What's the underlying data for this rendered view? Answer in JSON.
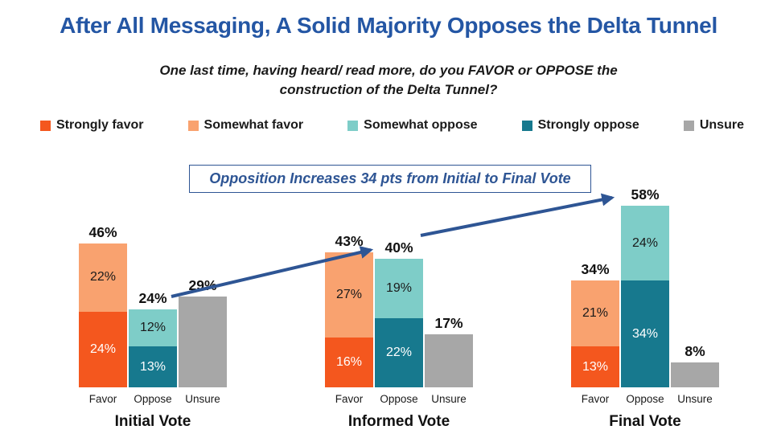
{
  "title": "After All Messaging, A Solid Majority Opposes the Delta Tunnel",
  "subtitle": {
    "line1": "One last time, having heard/ read more, do you FAVOR or OPPOSE the",
    "line2": "construction of the Delta Tunnel?"
  },
  "annotation": {
    "text": "Opposition Increases 34 pts from Initial to Final Vote"
  },
  "colors": {
    "title_blue": "#2456A4",
    "annotation_blue": "#2E5594",
    "arrow_blue": "#2E5594",
    "strongly_favor": "#F4571E",
    "somewhat_favor": "#F9A26F",
    "somewhat_oppose": "#7ECDC8",
    "strongly_oppose": "#17798E",
    "unsure": "#A7A7A7"
  },
  "series_styles": {
    "Strongly favor": {
      "fill": "#F4571E",
      "text": "#FFFFFF"
    },
    "Somewhat favor": {
      "fill": "#F9A26F",
      "text": "#1A1A1A"
    },
    "Somewhat oppose": {
      "fill": "#7ECDC8",
      "text": "#1A1A1A"
    },
    "Strongly oppose": {
      "fill": "#17798E",
      "text": "#FFFFFF"
    },
    "Unsure": {
      "fill": "#A7A7A7",
      "text": "#1A1A1A"
    }
  },
  "legend": {
    "items": [
      {
        "label": "Strongly favor",
        "series": "Strongly favor"
      },
      {
        "label": "Somewhat favor",
        "series": "Somewhat favor"
      },
      {
        "label": "Somewhat oppose",
        "series": "Somewhat oppose"
      },
      {
        "label": "Strongly oppose",
        "series": "Strongly oppose"
      },
      {
        "label": "Unsure",
        "series": "Unsure"
      }
    ]
  },
  "chart_data": {
    "type": "bar",
    "stacked": true,
    "unit": "percent",
    "ylim": [
      0,
      60
    ],
    "grid": false,
    "legend_position": "top",
    "series_order": [
      "Strongly favor",
      "Somewhat favor",
      "Somewhat oppose",
      "Strongly oppose",
      "Unsure"
    ],
    "groups": [
      {
        "label": "Initial Vote",
        "bars": [
          {
            "category": "Favor",
            "total": 46,
            "total_label": "46%",
            "segments": [
              {
                "series": "Strongly favor",
                "value": 24,
                "label": "24%"
              },
              {
                "series": "Somewhat favor",
                "value": 22,
                "label": "22%"
              }
            ]
          },
          {
            "category": "Oppose",
            "total": 24,
            "total_label": "24%",
            "segments": [
              {
                "series": "Strongly oppose",
                "value": 13,
                "label": "13%"
              },
              {
                "series": "Somewhat oppose",
                "value": 12,
                "label": "12%"
              }
            ]
          },
          {
            "category": "Unsure",
            "total": 29,
            "total_label": "29%",
            "segments": [
              {
                "series": "Unsure",
                "value": 29,
                "label": ""
              }
            ]
          }
        ]
      },
      {
        "label": "Informed Vote",
        "bars": [
          {
            "category": "Favor",
            "total": 43,
            "total_label": "43%",
            "segments": [
              {
                "series": "Strongly favor",
                "value": 16,
                "label": "16%"
              },
              {
                "series": "Somewhat favor",
                "value": 27,
                "label": "27%"
              }
            ]
          },
          {
            "category": "Oppose",
            "total": 40,
            "total_label": "40%",
            "segments": [
              {
                "series": "Strongly oppose",
                "value": 22,
                "label": "22%"
              },
              {
                "series": "Somewhat oppose",
                "value": 19,
                "label": "19%"
              }
            ]
          },
          {
            "category": "Unsure",
            "total": 17,
            "total_label": "17%",
            "segments": [
              {
                "series": "Unsure",
                "value": 17,
                "label": ""
              }
            ]
          }
        ]
      },
      {
        "label": "Final Vote",
        "bars": [
          {
            "category": "Favor",
            "total": 34,
            "total_label": "34%",
            "segments": [
              {
                "series": "Strongly favor",
                "value": 13,
                "label": "13%"
              },
              {
                "series": "Somewhat favor",
                "value": 21,
                "label": "21%"
              }
            ]
          },
          {
            "category": "Oppose",
            "total": 58,
            "total_label": "58%",
            "segments": [
              {
                "series": "Strongly oppose",
                "value": 34,
                "label": "34%"
              },
              {
                "series": "Somewhat oppose",
                "value": 24,
                "label": "24%"
              }
            ]
          },
          {
            "category": "Unsure",
            "total": 8,
            "total_label": "8%",
            "segments": [
              {
                "series": "Unsure",
                "value": 8,
                "label": ""
              }
            ]
          }
        ]
      }
    ]
  }
}
